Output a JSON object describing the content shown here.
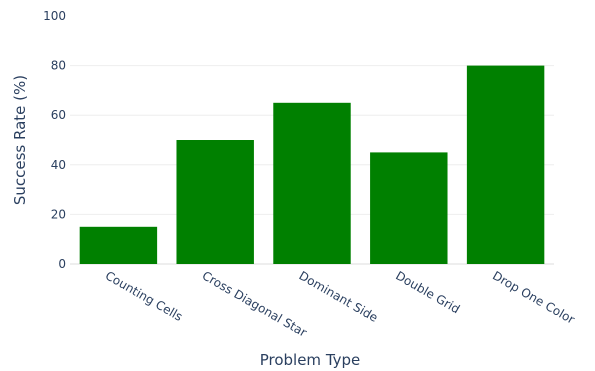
{
  "chart_data": {
    "type": "bar",
    "title": "",
    "xlabel": "Problem Type",
    "ylabel": "Success Rate (%)",
    "categories": [
      "Counting Cells",
      "Cross Diagonal Star",
      "Dominant Side",
      "Double Grid",
      "Drop One Color"
    ],
    "values": [
      15,
      50,
      65,
      45,
      80
    ],
    "ylim": [
      0,
      100
    ],
    "yticks": [
      0,
      20,
      40,
      60,
      80,
      100
    ],
    "grid": true,
    "bar_color": "#008000"
  }
}
